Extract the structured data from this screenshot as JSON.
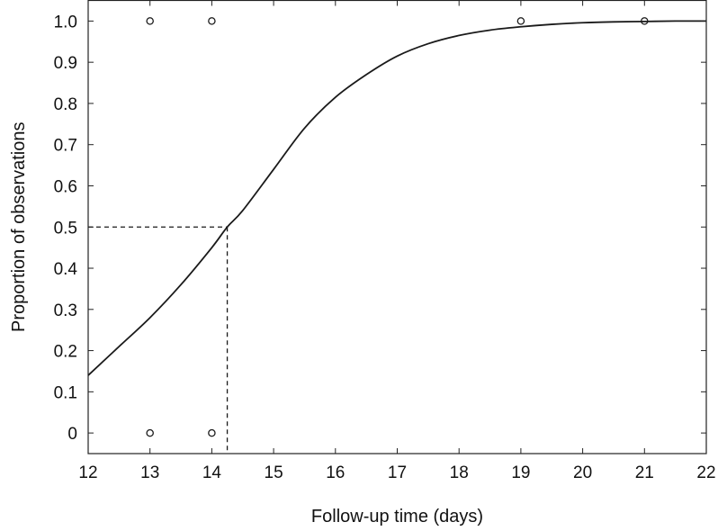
{
  "chart_data": {
    "type": "scatter",
    "title": "",
    "xlabel": "Follow-up time (days)",
    "ylabel": "Proportion of observations",
    "xlim": [
      12,
      22
    ],
    "ylim": [
      -0.05,
      1.05
    ],
    "x_ticks": [
      12,
      13,
      14,
      15,
      16,
      17,
      18,
      19,
      20,
      21,
      22
    ],
    "y_ticks": [
      0,
      0.1,
      0.2,
      0.3,
      0.4,
      0.5,
      0.6,
      0.7,
      0.8,
      0.9,
      1.0
    ],
    "y_tick_labels": [
      "0",
      "0.1",
      "0.2",
      "0.3",
      "0.4",
      "0.5",
      "0.6",
      "0.7",
      "0.8",
      "0.9",
      "1.0"
    ],
    "grid": false,
    "points": [
      {
        "x": 13,
        "y": 1
      },
      {
        "x": 14,
        "y": 1
      },
      {
        "x": 19,
        "y": 1
      },
      {
        "x": 21,
        "y": 1
      },
      {
        "x": 13,
        "y": 0
      },
      {
        "x": 14,
        "y": 0
      }
    ],
    "fitted_curve": {
      "x": [
        12,
        12.5,
        13,
        13.5,
        14,
        14.25,
        14.5,
        15,
        15.5,
        16,
        16.5,
        17,
        17.5,
        18,
        18.5,
        19,
        19.5,
        20,
        20.5,
        21,
        21.5,
        22
      ],
      "y": [
        0.14,
        0.21,
        0.28,
        0.36,
        0.45,
        0.5,
        0.54,
        0.64,
        0.74,
        0.815,
        0.87,
        0.915,
        0.945,
        0.965,
        0.978,
        0.986,
        0.992,
        0.996,
        0.998,
        0.999,
        1.0,
        1.0
      ]
    },
    "reference_lines": {
      "x": 14.25,
      "y": 0.5
    }
  },
  "colors": {
    "line": "#1a1a1a",
    "marker": "#1a1a1a",
    "background": "#ffffff"
  }
}
